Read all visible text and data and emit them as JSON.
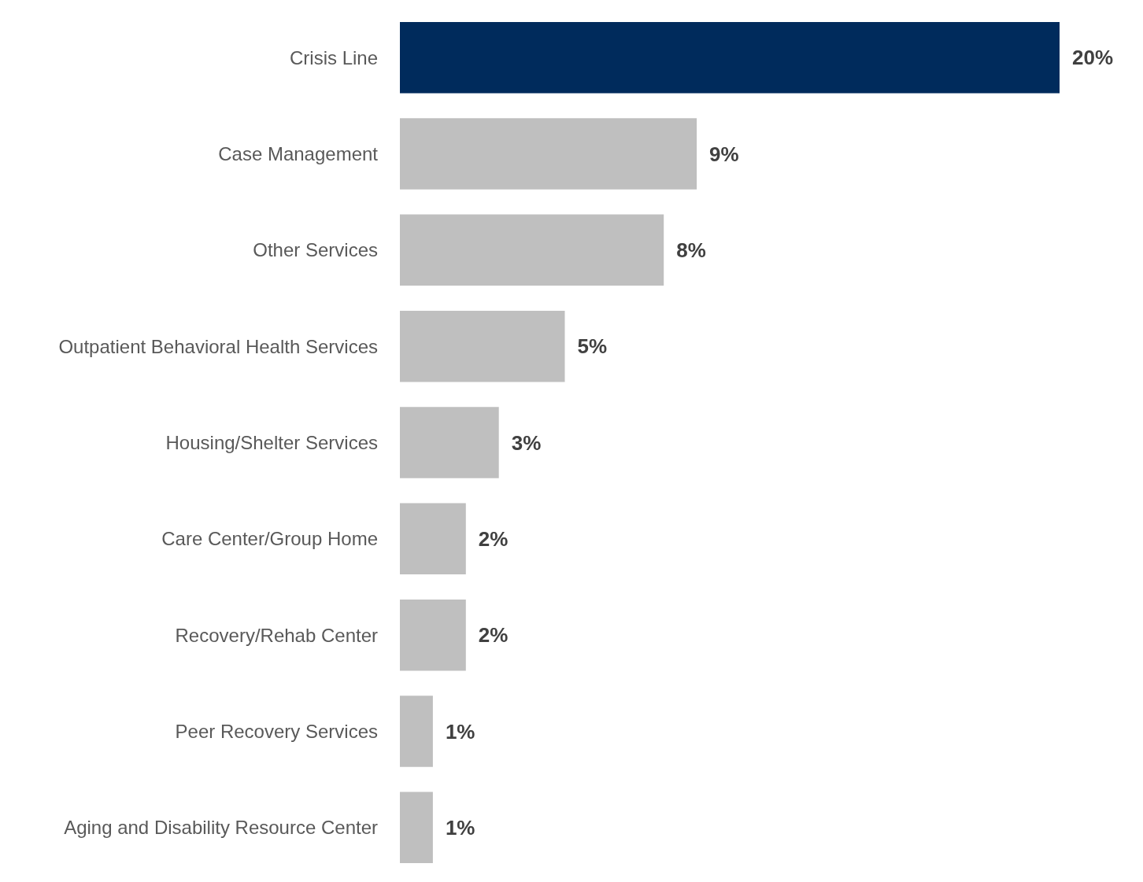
{
  "chart_data": {
    "type": "bar",
    "orientation": "horizontal",
    "categories": [
      "Crisis Line",
      "Case Management",
      "Other Services",
      "Outpatient Behavioral Health Services",
      "Housing/Shelter Services",
      "Care Center/Group Home",
      "Recovery/Rehab Center",
      "Peer Recovery Services",
      "Aging and Disability Resource Center"
    ],
    "values": [
      20,
      9,
      8,
      5,
      3,
      2,
      2,
      1,
      1
    ],
    "value_labels": [
      "20%",
      "9%",
      "8%",
      "5%",
      "3%",
      "2%",
      "2%",
      "1%",
      "1%"
    ],
    "colors": [
      "#002b5c",
      "#bfbfbf",
      "#bfbfbf",
      "#bfbfbf",
      "#bfbfbf",
      "#bfbfbf",
      "#bfbfbf",
      "#bfbfbf",
      "#bfbfbf"
    ]
  }
}
